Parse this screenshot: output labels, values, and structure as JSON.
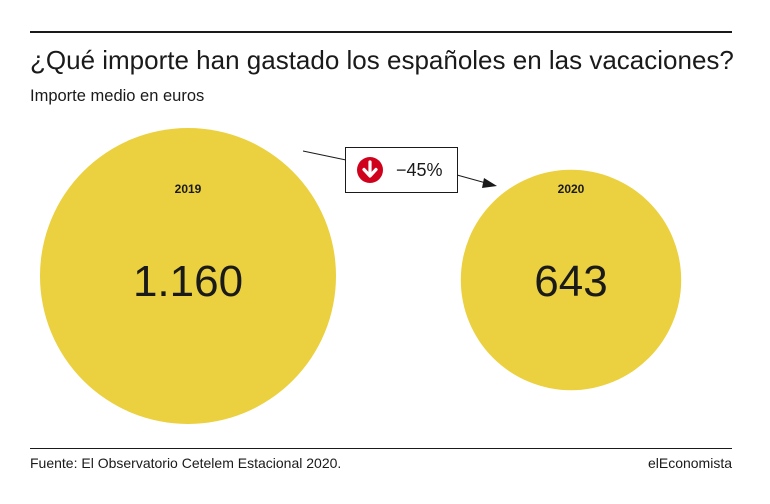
{
  "title": "¿Qué importe han gastado los españoles en las vacaciones?",
  "subtitle": "Importe medio en euros",
  "source": "Fuente: El Observatorio Cetelem Estacional 2020.",
  "brand": "elEconomista",
  "change": {
    "label": "−45%",
    "icon": "down-arrow-icon",
    "icon_color": "#d0021b"
  },
  "colors": {
    "bubble": "#ebd03f",
    "text": "#1a1a1a",
    "accent": "#d0021b"
  },
  "chart_data": {
    "type": "bubble",
    "title": "¿Qué importe han gastado los españoles en las vacaciones?",
    "subtitle": "Importe medio en euros",
    "categories": [
      "2019",
      "2020"
    ],
    "values": [
      1160,
      643
    ],
    "value_labels": [
      "1.160",
      "643"
    ],
    "change_label": "−45%"
  }
}
